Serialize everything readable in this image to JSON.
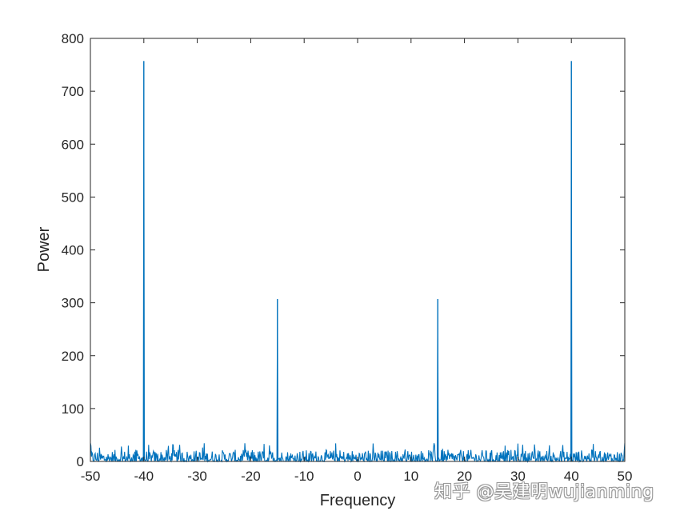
{
  "chart_data": {
    "type": "line",
    "title": "",
    "xlabel": "Frequency",
    "ylabel": "Power",
    "xlim": [
      -50,
      50
    ],
    "ylim": [
      0,
      800
    ],
    "xticks": [
      "-50",
      "-40",
      "-30",
      "-20",
      "-10",
      "0",
      "10",
      "20",
      "30",
      "40",
      "50"
    ],
    "yticks": [
      "0",
      "100",
      "200",
      "300",
      "400",
      "500",
      "600",
      "700",
      "800"
    ],
    "grid": false,
    "line_color": "#0072BD",
    "peaks": [
      {
        "x": -40,
        "y": 757
      },
      {
        "x": -15,
        "y": 307
      },
      {
        "x": 15,
        "y": 307
      },
      {
        "x": 40,
        "y": 757
      }
    ],
    "noise_floor_max": 35
  },
  "watermark": "知乎 @吴建明wujianming"
}
